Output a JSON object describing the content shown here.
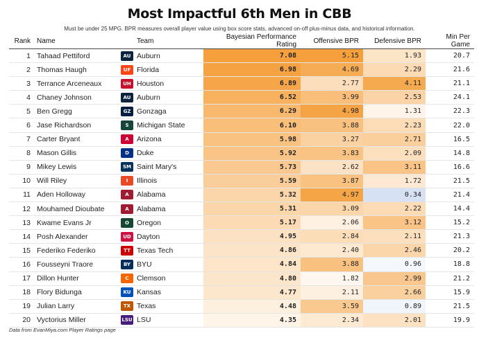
{
  "title": "Most Impactful 6th Men in CBB",
  "subtitle": "Must be under 25 MPG. BPR measures overall player value using box score stats, advanced on-off plus-minus data, and historical information.",
  "footer": "Data from EvanMiya.com Player Ratings page",
  "headers": {
    "rank": "Rank",
    "name": "Name",
    "team": "Team",
    "bpr": "Bayesian Performance Rating",
    "obpr": "Offensive BPR",
    "dbpr": "Defensive BPR",
    "mpg": "Min Per Game"
  },
  "chart_data": {
    "type": "table",
    "title": "Most Impactful 6th Men in CBB",
    "columns": [
      "Rank",
      "Name",
      "Team",
      "Bayesian Performance Rating",
      "Offensive BPR",
      "Defensive BPR",
      "Min Per Game"
    ],
    "rows": [
      {
        "rank": "1",
        "name": "Tahaad Pettiford",
        "team": "Auburn",
        "logo": "AU",
        "logo_color": "#0c2340",
        "bpr": "7.08",
        "obpr": "5.15",
        "dbpr": "1.93",
        "mpg": "20.7"
      },
      {
        "rank": "2",
        "name": "Thomas Haugh",
        "team": "Florida",
        "logo": "UF",
        "logo_color": "#fa4616",
        "bpr": "6.98",
        "obpr": "4.69",
        "dbpr": "2.29",
        "mpg": "21.6"
      },
      {
        "rank": "3",
        "name": "Terrance Arceneaux",
        "team": "Houston",
        "logo": "UH",
        "logo_color": "#c8102e",
        "bpr": "6.89",
        "obpr": "2.77",
        "dbpr": "4.11",
        "mpg": "21.1"
      },
      {
        "rank": "4",
        "name": "Chaney Johnson",
        "team": "Auburn",
        "logo": "AU",
        "logo_color": "#0c2340",
        "bpr": "6.52",
        "obpr": "3.99",
        "dbpr": "2.53",
        "mpg": "24.1"
      },
      {
        "rank": "5",
        "name": "Ben Gregg",
        "team": "Gonzaga",
        "logo": "GZ",
        "logo_color": "#041e42",
        "bpr": "6.29",
        "obpr": "4.98",
        "dbpr": "1.31",
        "mpg": "22.3"
      },
      {
        "rank": "6",
        "name": "Jase Richardson",
        "team": "Michigan State",
        "logo": "S",
        "logo_color": "#18453b",
        "bpr": "6.10",
        "obpr": "3.88",
        "dbpr": "2.23",
        "mpg": "22.0"
      },
      {
        "rank": "7",
        "name": "Carter Bryant",
        "team": "Arizona",
        "logo": "A",
        "logo_color": "#cc0033",
        "bpr": "5.98",
        "obpr": "3.27",
        "dbpr": "2.71",
        "mpg": "16.5"
      },
      {
        "rank": "8",
        "name": "Mason Gillis",
        "team": "Duke",
        "logo": "D",
        "logo_color": "#003087",
        "bpr": "5.92",
        "obpr": "3.83",
        "dbpr": "2.09",
        "mpg": "14.8"
      },
      {
        "rank": "9",
        "name": "Mikey Lewis",
        "team": "Saint Mary's",
        "logo": "SM",
        "logo_color": "#06315b",
        "bpr": "5.73",
        "obpr": "2.62",
        "dbpr": "3.11",
        "mpg": "16.6"
      },
      {
        "rank": "10",
        "name": "Will Riley",
        "team": "Illinois",
        "logo": "I",
        "logo_color": "#e84a27",
        "bpr": "5.59",
        "obpr": "3.87",
        "dbpr": "1.72",
        "mpg": "21.5"
      },
      {
        "rank": "11",
        "name": "Aden Holloway",
        "team": "Alabama",
        "logo": "A",
        "logo_color": "#9e1b32",
        "bpr": "5.32",
        "obpr": "4.97",
        "dbpr": "0.34",
        "mpg": "21.4"
      },
      {
        "rank": "12",
        "name": "Mouhamed Dioubate",
        "team": "Alabama",
        "logo": "A",
        "logo_color": "#9e1b32",
        "bpr": "5.31",
        "obpr": "3.09",
        "dbpr": "2.22",
        "mpg": "14.4"
      },
      {
        "rank": "13",
        "name": "Kwame Evans Jr",
        "team": "Oregon",
        "logo": "O",
        "logo_color": "#154733",
        "bpr": "5.17",
        "obpr": "2.06",
        "dbpr": "3.12",
        "mpg": "15.2"
      },
      {
        "rank": "14",
        "name": "Posh Alexander",
        "team": "Dayton",
        "logo": "UD",
        "logo_color": "#ce1141",
        "bpr": "4.95",
        "obpr": "2.84",
        "dbpr": "2.11",
        "mpg": "21.3"
      },
      {
        "rank": "15",
        "name": "Federiko Federiko",
        "team": "Texas Tech",
        "logo": "TT",
        "logo_color": "#cc0000",
        "bpr": "4.86",
        "obpr": "2.40",
        "dbpr": "2.46",
        "mpg": "20.2"
      },
      {
        "rank": "16",
        "name": "Fousseyni Traore",
        "team": "BYU",
        "logo": "BY",
        "logo_color": "#002e5d",
        "bpr": "4.84",
        "obpr": "3.88",
        "dbpr": "0.96",
        "mpg": "18.8"
      },
      {
        "rank": "17",
        "name": "Dillon Hunter",
        "team": "Clemson",
        "logo": "C",
        "logo_color": "#f56600",
        "bpr": "4.80",
        "obpr": "1.82",
        "dbpr": "2.99",
        "mpg": "21.2"
      },
      {
        "rank": "18",
        "name": "Flory Bidunga",
        "team": "Kansas",
        "logo": "KU",
        "logo_color": "#0051ba",
        "bpr": "4.77",
        "obpr": "2.11",
        "dbpr": "2.66",
        "mpg": "15.9"
      },
      {
        "rank": "19",
        "name": "Julian Larry",
        "team": "Texas",
        "logo": "TX",
        "logo_color": "#bf5700",
        "bpr": "4.48",
        "obpr": "3.59",
        "dbpr": "0.89",
        "mpg": "21.5"
      },
      {
        "rank": "20",
        "name": "Vyctorius Miller",
        "team": "LSU",
        "logo": "LSU",
        "logo_color": "#461d7c",
        "bpr": "4.35",
        "obpr": "2.34",
        "dbpr": "2.01",
        "mpg": "19.9"
      }
    ]
  }
}
